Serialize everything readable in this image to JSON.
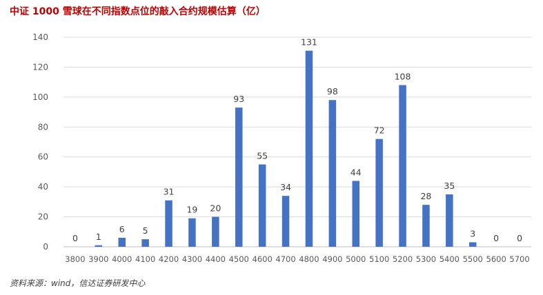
{
  "title": "中证 1000 雪球在不同指数点位的敲入合约规模估算（亿）",
  "source": "资料来源：wind，信达证券研发中心",
  "chart_data": {
    "type": "bar",
    "categories": [
      "3800",
      "3900",
      "4000",
      "4100",
      "4200",
      "4300",
      "4400",
      "4500",
      "4600",
      "4700",
      "4800",
      "4900",
      "5000",
      "5100",
      "5200",
      "5300",
      "5400",
      "5500",
      "5600",
      "5700"
    ],
    "values": [
      0,
      1,
      6,
      5,
      31,
      19,
      20,
      93,
      55,
      34,
      131,
      98,
      44,
      72,
      108,
      28,
      35,
      3,
      0,
      0
    ],
    "ylim": [
      0,
      140
    ],
    "yticks": [
      0,
      20,
      40,
      60,
      80,
      100,
      120,
      140
    ],
    "grid": true,
    "bar_color": "#4472c4",
    "xlabel": "",
    "ylabel": ""
  }
}
